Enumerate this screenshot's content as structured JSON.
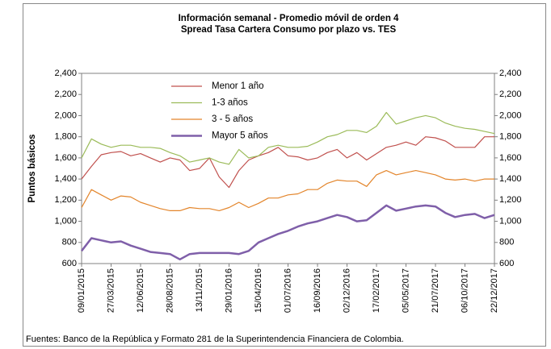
{
  "chart_data": {
    "type": "line",
    "title": "Información semanal - Promedio móvil de orden 4",
    "subtitle": "Spread Tasa Cartera Consumo  por plazo vs. TES",
    "y_label": "Puntos básicos",
    "source": "Fuentes: Banco de la República y Formato 281 de la Superintendencia Financiera de Colombia.",
    "categories": [
      "09/01/2015",
      null,
      null,
      "27/03/2015",
      null,
      null,
      "12/06/2015",
      null,
      null,
      "28/08/2015",
      null,
      null,
      "13/11/2015",
      null,
      null,
      "29/01/2016",
      null,
      null,
      "15/04/2016",
      null,
      null,
      "01/07/2016",
      null,
      null,
      "16/09/2016",
      null,
      null,
      "02/12/2016",
      null,
      null,
      "17/02/2017",
      null,
      null,
      "05/05/2017",
      null,
      null,
      "21/07/2017",
      null,
      null,
      "06/10/2017",
      null,
      null,
      "22/12/2017"
    ],
    "series": [
      {
        "name": "Menor 1 año",
        "color": "#c0504d",
        "values": [
          1400,
          1520,
          1630,
          1650,
          1660,
          1620,
          1640,
          1600,
          1560,
          1600,
          1580,
          1480,
          1500,
          1600,
          1420,
          1320,
          1480,
          1580,
          1620,
          1650,
          1700,
          1620,
          1610,
          1580,
          1600,
          1650,
          1680,
          1600,
          1650,
          1580,
          1640,
          1700,
          1720,
          1750,
          1720,
          1800,
          1790,
          1760,
          1700,
          1700,
          1700,
          1800,
          1800
        ]
      },
      {
        "name": "1-3 años",
        "color": "#9bbb59",
        "values": [
          1600,
          1780,
          1730,
          1700,
          1720,
          1720,
          1700,
          1700,
          1690,
          1650,
          1620,
          1560,
          1580,
          1600,
          1560,
          1540,
          1680,
          1600,
          1620,
          1700,
          1720,
          1700,
          1700,
          1710,
          1750,
          1800,
          1820,
          1860,
          1860,
          1840,
          1900,
          2030,
          1920,
          1950,
          1980,
          2000,
          1980,
          1930,
          1900,
          1880,
          1870,
          1850,
          1830
        ]
      },
      {
        "name": "3 - 5 años",
        "color": "#e3852b",
        "values": [
          1130,
          1300,
          1250,
          1200,
          1240,
          1230,
          1180,
          1150,
          1120,
          1100,
          1100,
          1130,
          1120,
          1120,
          1100,
          1130,
          1180,
          1130,
          1170,
          1220,
          1220,
          1250,
          1260,
          1300,
          1300,
          1360,
          1390,
          1380,
          1380,
          1330,
          1440,
          1480,
          1440,
          1460,
          1480,
          1460,
          1440,
          1400,
          1390,
          1400,
          1380,
          1400,
          1400
        ]
      },
      {
        "name": "Mayor 5 años",
        "color": "#7f5fa9",
        "values": [
          720,
          840,
          820,
          800,
          810,
          770,
          740,
          710,
          700,
          690,
          640,
          690,
          700,
          700,
          700,
          700,
          690,
          720,
          800,
          840,
          880,
          910,
          950,
          980,
          1000,
          1030,
          1060,
          1040,
          1000,
          1010,
          1080,
          1150,
          1100,
          1120,
          1140,
          1150,
          1140,
          1080,
          1040,
          1060,
          1070,
          1030,
          1060
        ]
      }
    ],
    "ylim": [
      600,
      2400
    ],
    "yticks": [
      600,
      800,
      {
        "value": 1000,
        "label": "1,000"
      },
      {
        "value": 1200,
        "label": "1,200"
      },
      {
        "value": 1400,
        "label": "1,400"
      },
      {
        "value": 1600,
        "label": "1,600"
      },
      {
        "value": 1800,
        "label": "1,800"
      },
      {
        "value": 2000,
        "label": "2,000"
      },
      {
        "value": 2200,
        "label": "2,200"
      },
      {
        "value": 2400,
        "label": "2,400"
      }
    ],
    "y2lim": [
      600,
      2400
    ],
    "y2ticks": [
      600,
      800,
      {
        "value": 1000,
        "label": "1,000"
      },
      {
        "value": 1200,
        "label": "1,200"
      },
      {
        "value": 1400,
        "label": "1,400"
      },
      {
        "value": 1600,
        "label": "1,600"
      },
      {
        "value": 1800,
        "label": "1,800"
      },
      {
        "value": 2000,
        "label": "2,000"
      },
      {
        "value": 2200,
        "label": "2,200"
      },
      {
        "value": 2400,
        "label": "2,400"
      }
    ],
    "grid": false,
    "legend": "upper left"
  }
}
